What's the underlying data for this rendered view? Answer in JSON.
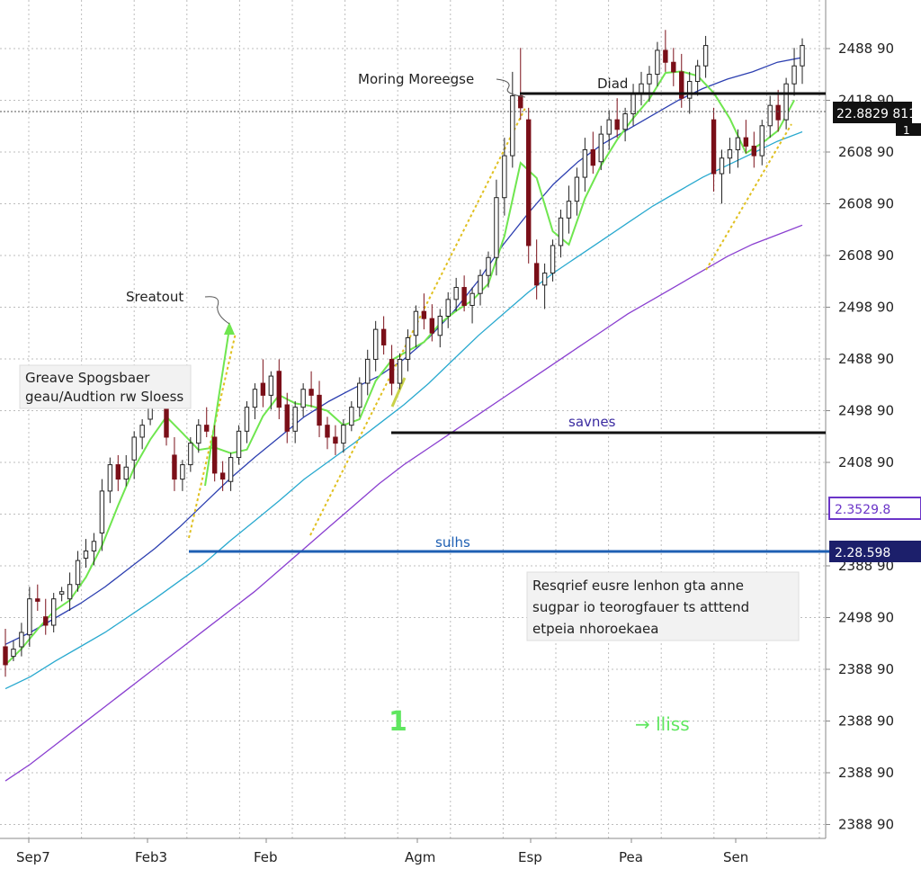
{
  "chart_data": {
    "type": "candlestick",
    "title": "",
    "xlabel": "",
    "ylabel": "",
    "grid": true,
    "x_ticks": [
      "Sep7",
      "Feb3",
      "Feb",
      "Agm",
      "Esp",
      "Pea",
      "Sen"
    ],
    "y_ticks": [
      "2488 90",
      "2418 90",
      "2608 90",
      "2608 90",
      "2608 90",
      "2498 90",
      "2488 90",
      "2498 90",
      "2408 90",
      "2388 90",
      "2388 90",
      "2498 90",
      "2388 90",
      "2388 90",
      "2388 90",
      "2388 90"
    ],
    "price_tags": [
      {
        "text": "22.8829 811",
        "sub": "1",
        "style": "dark"
      },
      {
        "text": "2.3529.8",
        "style": "purple-outline"
      },
      {
        "text": "2.28.598",
        "style": "navy"
      }
    ],
    "candles": [
      [
        560,
        575,
        535,
        545
      ],
      [
        552,
        565,
        548,
        558
      ],
      [
        560,
        580,
        552,
        572
      ],
      [
        570,
        610,
        560,
        600
      ],
      [
        600,
        612,
        590,
        598
      ],
      [
        585,
        600,
        570,
        578
      ],
      [
        578,
        605,
        572,
        600
      ],
      [
        604,
        610,
        598,
        606
      ],
      [
        600,
        622,
        590,
        612
      ],
      [
        612,
        640,
        606,
        632
      ],
      [
        634,
        650,
        626,
        640
      ],
      [
        640,
        655,
        628,
        648
      ],
      [
        655,
        700,
        640,
        690
      ],
      [
        690,
        718,
        680,
        712
      ],
      [
        712,
        720,
        690,
        700
      ],
      [
        700,
        720,
        694,
        710
      ],
      [
        716,
        740,
        700,
        735
      ],
      [
        735,
        750,
        725,
        745
      ],
      [
        750,
        782,
        745,
        775
      ],
      [
        775,
        790,
        765,
        770
      ],
      [
        760,
        775,
        728,
        735
      ],
      [
        720,
        735,
        690,
        700
      ],
      [
        700,
        716,
        690,
        712
      ],
      [
        712,
        735,
        706,
        730
      ],
      [
        730,
        750,
        722,
        745
      ],
      [
        745,
        760,
        735,
        740
      ],
      [
        735,
        745,
        698,
        705
      ],
      [
        705,
        715,
        690,
        700
      ],
      [
        698,
        722,
        690,
        718
      ],
      [
        718,
        745,
        712,
        740
      ],
      [
        740,
        765,
        730,
        760
      ],
      [
        760,
        780,
        750,
        775
      ],
      [
        780,
        800,
        760,
        770
      ],
      [
        770,
        790,
        758,
        786
      ],
      [
        790,
        800,
        750,
        760
      ],
      [
        762,
        772,
        730,
        740
      ],
      [
        740,
        765,
        730,
        760
      ],
      [
        760,
        780,
        752,
        775
      ],
      [
        775,
        790,
        760,
        770
      ],
      [
        770,
        782,
        735,
        745
      ],
      [
        745,
        752,
        725,
        735
      ],
      [
        735,
        745,
        720,
        730
      ],
      [
        730,
        750,
        722,
        745
      ],
      [
        745,
        765,
        740,
        760
      ],
      [
        760,
        785,
        752,
        780
      ],
      [
        780,
        808,
        770,
        800
      ],
      [
        800,
        832,
        790,
        825
      ],
      [
        825,
        836,
        804,
        812
      ],
      [
        800,
        812,
        770,
        780
      ],
      [
        780,
        805,
        775,
        800
      ],
      [
        800,
        825,
        790,
        818
      ],
      [
        820,
        845,
        810,
        840
      ],
      [
        840,
        855,
        825,
        834
      ],
      [
        834,
        846,
        815,
        822
      ],
      [
        820,
        842,
        810,
        836
      ],
      [
        836,
        856,
        826,
        850
      ],
      [
        850,
        868,
        840,
        860
      ],
      [
        860,
        870,
        840,
        845
      ],
      [
        845,
        860,
        830,
        855
      ],
      [
        855,
        875,
        845,
        870
      ],
      [
        870,
        890,
        860,
        885
      ],
      [
        885,
        950,
        870,
        935
      ],
      [
        935,
        985,
        920,
        970
      ],
      [
        970,
        1040,
        960,
        1020
      ],
      [
        1020,
        1060,
        1000,
        1010
      ],
      [
        1000,
        1010,
        880,
        895
      ],
      [
        880,
        900,
        850,
        862
      ],
      [
        862,
        880,
        842,
        872
      ],
      [
        872,
        900,
        865,
        895
      ],
      [
        895,
        925,
        885,
        918
      ],
      [
        918,
        945,
        905,
        932
      ],
      [
        932,
        960,
        920,
        952
      ],
      [
        952,
        985,
        940,
        975
      ],
      [
        975,
        990,
        955,
        962
      ],
      [
        965,
        995,
        958,
        988
      ],
      [
        988,
        1008,
        975,
        1000
      ],
      [
        1000,
        1018,
        985,
        992
      ],
      [
        992,
        1010,
        982,
        1005
      ],
      [
        1005,
        1030,
        995,
        1022
      ],
      [
        1022,
        1040,
        1012,
        1030
      ],
      [
        1030,
        1045,
        1015,
        1038
      ],
      [
        1038,
        1065,
        1028,
        1058
      ],
      [
        1058,
        1075,
        1040,
        1048
      ],
      [
        1048,
        1060,
        1028,
        1040
      ],
      [
        1040,
        1055,
        1010,
        1018
      ],
      [
        1018,
        1040,
        1005,
        1032
      ],
      [
        1032,
        1050,
        1020,
        1045
      ],
      [
        1045,
        1070,
        1035,
        1062
      ],
      [
        1000,
        1010,
        940,
        955
      ],
      [
        955,
        975,
        930,
        968
      ],
      [
        968,
        985,
        955,
        975
      ],
      [
        975,
        992,
        960,
        985
      ],
      [
        985,
        1000,
        972,
        978
      ],
      [
        978,
        990,
        960,
        970
      ],
      [
        970,
        1000,
        962,
        995
      ],
      [
        995,
        1020,
        985,
        1012
      ],
      [
        1012,
        1025,
        990,
        1000
      ],
      [
        1000,
        1035,
        992,
        1030
      ],
      [
        1030,
        1060,
        1020,
        1045
      ],
      [
        1045,
        1068,
        1030,
        1062
      ]
    ],
    "series": [
      {
        "values": [
          562,
          572,
          584,
          596,
          610,
          626,
          642,
          660,
          680,
          700,
          718,
          735,
          752,
          765,
          776,
          786,
          800,
          818,
          840,
          866,
          896,
          922,
          946,
          965,
          980,
          992,
          1004,
          1016,
          1026,
          1034,
          1040,
          1048,
          1052
        ]
      },
      {
        "values": [
          525,
          535,
          548,
          560,
          572,
          586,
          600,
          615,
          630,
          648,
          665,
          682,
          700,
          715,
          730,
          746,
          762,
          780,
          800,
          820,
          838,
          856,
          872,
          886,
          900,
          914,
          928,
          940,
          952,
          962,
          972,
          982,
          990
        ]
      },
      {
        "values": [
          448,
          462,
          478,
          494,
          510,
          526,
          542,
          558,
          574,
          590,
          606,
          624,
          642,
          660,
          678,
          696,
          712,
          726,
          740,
          754,
          768,
          782,
          796,
          810,
          824,
          838,
          850,
          862,
          874,
          886,
          896,
          904,
          912
        ]
      }
    ],
    "annotations": [
      {
        "text": "Moring Moreegse"
      },
      {
        "text": "Diad"
      },
      {
        "text": "Sreatout"
      },
      {
        "text": "Greave Spogsbaer",
        "text2": "geau/Audtion rw Sloess"
      },
      {
        "text": "savnes"
      },
      {
        "text": "sulhs"
      },
      {
        "text": "Resqrief eusre lenhon gta anne",
        "text2": "sugpar io teorogfauer ts atttend",
        "text3": "etpeia nhoroekaea"
      },
      {
        "text": "1"
      },
      {
        "text": "→ lliss"
      }
    ]
  }
}
